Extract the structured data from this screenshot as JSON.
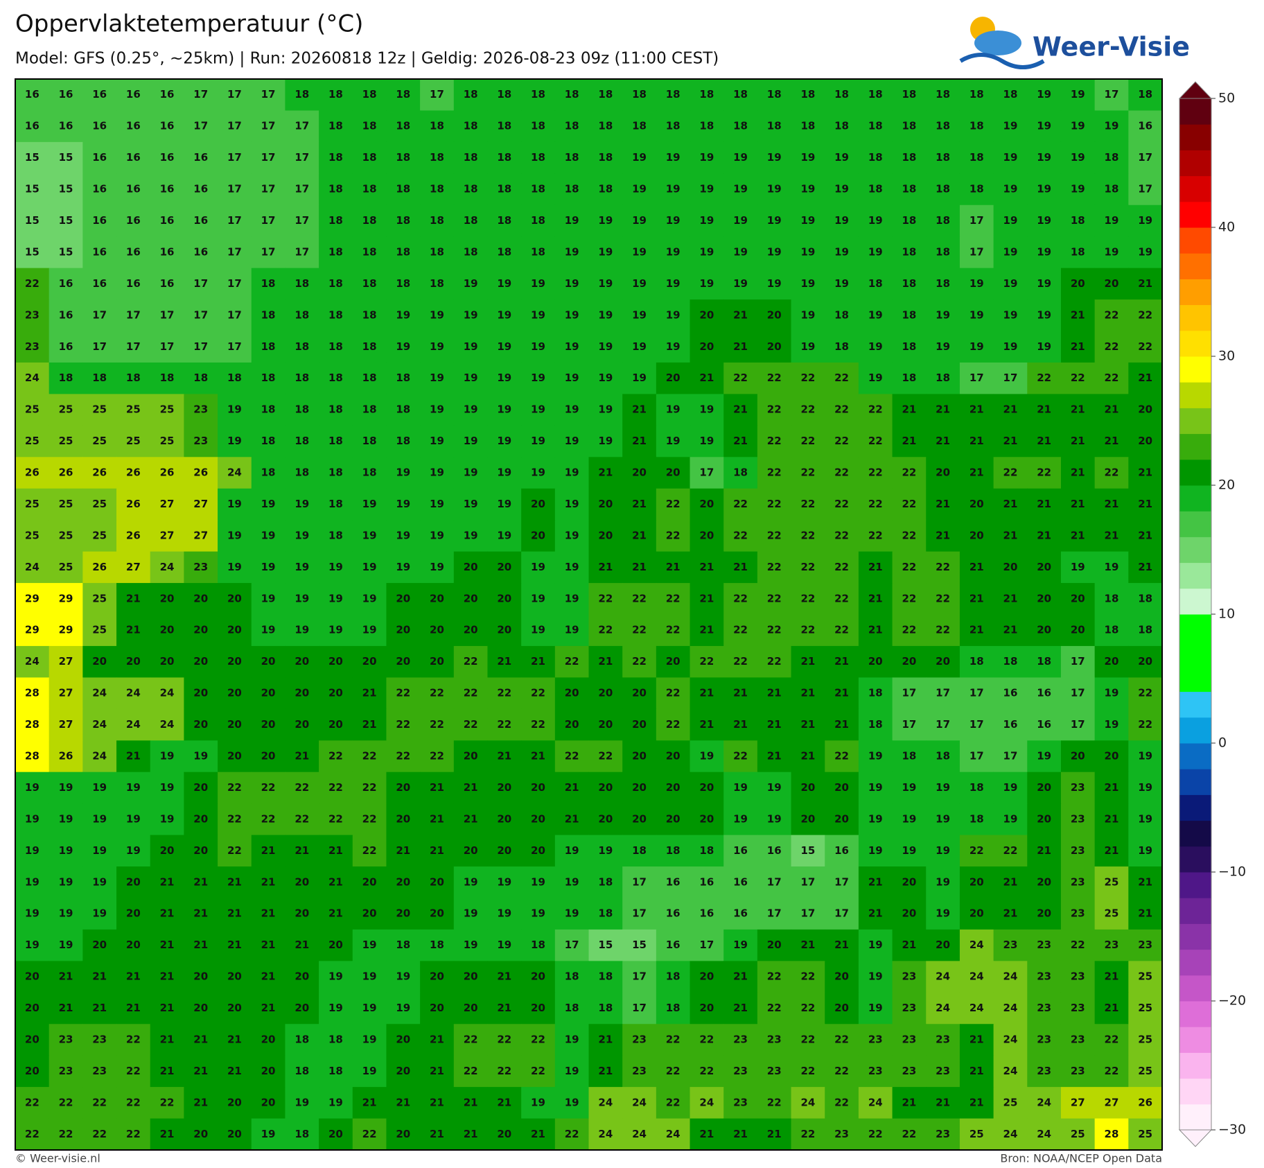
{
  "header": {
    "title": "Oppervlaktetemperatuur (°C)",
    "subtitle": "Model: GFS (0.25°, ~25km)  |  Run: 20260818 12z  |  Geldig: 2026-08-23 09z (11:00 CEST)"
  },
  "logo": "Weer-Visie",
  "footer": {
    "credit": "© Weer-visie.nl",
    "source": "Bron: NOAA/NCEP Open Data"
  },
  "map": {
    "rows": [
      [
        16,
        16,
        16,
        16,
        16,
        17,
        17,
        17,
        18,
        18,
        18,
        18,
        17,
        18,
        18,
        18,
        18,
        18,
        18,
        18,
        18,
        18,
        18,
        18,
        18,
        18,
        18,
        18,
        18,
        18,
        19,
        19,
        17,
        18
      ],
      [
        16,
        16,
        16,
        16,
        16,
        17,
        17,
        17,
        17,
        18,
        18,
        18,
        18,
        18,
        18,
        18,
        18,
        18,
        18,
        18,
        18,
        18,
        18,
        18,
        18,
        18,
        18,
        18,
        18,
        19,
        19,
        19,
        19,
        16
      ],
      [
        15,
        15,
        16,
        16,
        16,
        16,
        17,
        17,
        17,
        18,
        18,
        18,
        18,
        18,
        18,
        18,
        18,
        18,
        19,
        19,
        19,
        19,
        19,
        19,
        19,
        18,
        18,
        18,
        18,
        19,
        19,
        19,
        18,
        17
      ],
      [
        15,
        15,
        16,
        16,
        16,
        16,
        17,
        17,
        17,
        18,
        18,
        18,
        18,
        18,
        18,
        18,
        18,
        18,
        19,
        19,
        19,
        19,
        19,
        19,
        19,
        18,
        18,
        18,
        18,
        19,
        19,
        19,
        18,
        17
      ],
      [
        15,
        15,
        16,
        16,
        16,
        16,
        17,
        17,
        17,
        18,
        18,
        18,
        18,
        18,
        18,
        18,
        19,
        19,
        19,
        19,
        19,
        19,
        19,
        19,
        19,
        19,
        18,
        18,
        17,
        19,
        19,
        18,
        19,
        19
      ],
      [
        15,
        15,
        16,
        16,
        16,
        16,
        17,
        17,
        17,
        18,
        18,
        18,
        18,
        18,
        18,
        18,
        19,
        19,
        19,
        19,
        19,
        19,
        19,
        19,
        19,
        19,
        18,
        18,
        17,
        19,
        19,
        18,
        19,
        19
      ],
      [
        22,
        16,
        16,
        16,
        16,
        17,
        17,
        18,
        18,
        18,
        18,
        18,
        18,
        19,
        19,
        19,
        19,
        19,
        19,
        19,
        19,
        19,
        19,
        19,
        19,
        18,
        18,
        18,
        19,
        19,
        19,
        20,
        20,
        21
      ],
      [
        23,
        16,
        17,
        17,
        17,
        17,
        17,
        18,
        18,
        18,
        18,
        19,
        19,
        19,
        19,
        19,
        19,
        19,
        19,
        19,
        20,
        21,
        20,
        19,
        18,
        19,
        18,
        19,
        19,
        19,
        19,
        21,
        22,
        22
      ],
      [
        23,
        16,
        17,
        17,
        17,
        17,
        17,
        18,
        18,
        18,
        18,
        19,
        19,
        19,
        19,
        19,
        19,
        19,
        19,
        19,
        20,
        21,
        20,
        19,
        18,
        19,
        18,
        19,
        19,
        19,
        19,
        21,
        22,
        22
      ],
      [
        24,
        18,
        18,
        18,
        18,
        18,
        18,
        18,
        18,
        18,
        18,
        18,
        19,
        19,
        19,
        19,
        19,
        19,
        19,
        20,
        21,
        22,
        22,
        22,
        22,
        19,
        18,
        18,
        17,
        17,
        22,
        22,
        22,
        21
      ],
      [
        25,
        25,
        25,
        25,
        25,
        23,
        19,
        18,
        18,
        18,
        18,
        18,
        19,
        19,
        19,
        19,
        19,
        19,
        21,
        19,
        19,
        21,
        22,
        22,
        22,
        22,
        21,
        21,
        21,
        21,
        21,
        21,
        21,
        20
      ],
      [
        25,
        25,
        25,
        25,
        25,
        23,
        19,
        18,
        18,
        18,
        18,
        18,
        19,
        19,
        19,
        19,
        19,
        19,
        21,
        19,
        19,
        21,
        22,
        22,
        22,
        22,
        21,
        21,
        21,
        21,
        21,
        21,
        21,
        20
      ],
      [
        26,
        26,
        26,
        26,
        26,
        26,
        24,
        18,
        18,
        18,
        18,
        19,
        19,
        19,
        19,
        19,
        19,
        21,
        20,
        20,
        17,
        18,
        22,
        22,
        22,
        22,
        22,
        20,
        21,
        22,
        22,
        21,
        22,
        21
      ],
      [
        25,
        25,
        25,
        26,
        27,
        27,
        19,
        19,
        19,
        18,
        19,
        19,
        19,
        19,
        19,
        20,
        19,
        20,
        21,
        22,
        20,
        22,
        22,
        22,
        22,
        22,
        22,
        21,
        20,
        21,
        21,
        21,
        21,
        21
      ],
      [
        25,
        25,
        25,
        26,
        27,
        27,
        19,
        19,
        19,
        18,
        19,
        19,
        19,
        19,
        19,
        20,
        19,
        20,
        21,
        22,
        20,
        22,
        22,
        22,
        22,
        22,
        22,
        21,
        20,
        21,
        21,
        21,
        21,
        21
      ],
      [
        24,
        25,
        26,
        27,
        24,
        23,
        19,
        19,
        19,
        19,
        19,
        19,
        19,
        20,
        20,
        19,
        19,
        21,
        21,
        21,
        21,
        21,
        22,
        22,
        22,
        21,
        22,
        22,
        21,
        20,
        20,
        19,
        19,
        21
      ],
      [
        29,
        29,
        25,
        21,
        20,
        20,
        20,
        19,
        19,
        19,
        19,
        20,
        20,
        20,
        20,
        19,
        19,
        22,
        22,
        22,
        21,
        22,
        22,
        22,
        22,
        21,
        22,
        22,
        21,
        21,
        20,
        20,
        18,
        18
      ],
      [
        29,
        29,
        25,
        21,
        20,
        20,
        20,
        19,
        19,
        19,
        19,
        20,
        20,
        20,
        20,
        19,
        19,
        22,
        22,
        22,
        21,
        22,
        22,
        22,
        22,
        21,
        22,
        22,
        21,
        21,
        20,
        20,
        18,
        18
      ],
      [
        24,
        27,
        20,
        20,
        20,
        20,
        20,
        20,
        20,
        20,
        20,
        20,
        20,
        22,
        21,
        21,
        22,
        21,
        22,
        20,
        22,
        22,
        22,
        21,
        21,
        20,
        20,
        20,
        18,
        18,
        18,
        17,
        20,
        20
      ],
      [
        28,
        27,
        24,
        24,
        24,
        20,
        20,
        20,
        20,
        20,
        21,
        22,
        22,
        22,
        22,
        22,
        20,
        20,
        20,
        22,
        21,
        21,
        21,
        21,
        21,
        18,
        17,
        17,
        17,
        16,
        16,
        17,
        19,
        22
      ],
      [
        28,
        27,
        24,
        24,
        24,
        20,
        20,
        20,
        20,
        20,
        21,
        22,
        22,
        22,
        22,
        22,
        20,
        20,
        20,
        22,
        21,
        21,
        21,
        21,
        21,
        18,
        17,
        17,
        17,
        16,
        16,
        17,
        19,
        22
      ],
      [
        28,
        26,
        24,
        21,
        19,
        19,
        20,
        20,
        21,
        22,
        22,
        22,
        22,
        20,
        21,
        21,
        22,
        22,
        20,
        20,
        19,
        22,
        21,
        21,
        22,
        19,
        18,
        18,
        17,
        17,
        19,
        20,
        20,
        19
      ],
      [
        19,
        19,
        19,
        19,
        19,
        20,
        22,
        22,
        22,
        22,
        22,
        20,
        21,
        21,
        20,
        20,
        21,
        20,
        20,
        20,
        20,
        19,
        19,
        20,
        20,
        19,
        19,
        19,
        18,
        19,
        20,
        23,
        21,
        19
      ],
      [
        19,
        19,
        19,
        19,
        19,
        20,
        22,
        22,
        22,
        22,
        22,
        20,
        21,
        21,
        20,
        20,
        21,
        20,
        20,
        20,
        20,
        19,
        19,
        20,
        20,
        19,
        19,
        19,
        18,
        19,
        20,
        23,
        21,
        19
      ],
      [
        19,
        19,
        19,
        19,
        20,
        20,
        22,
        21,
        21,
        21,
        22,
        21,
        21,
        20,
        20,
        20,
        19,
        19,
        18,
        18,
        18,
        16,
        16,
        15,
        16,
        19,
        19,
        19,
        22,
        22,
        21,
        23,
        21,
        19
      ],
      [
        19,
        19,
        19,
        20,
        21,
        21,
        21,
        21,
        20,
        21,
        20,
        20,
        20,
        19,
        19,
        19,
        19,
        18,
        17,
        16,
        16,
        16,
        17,
        17,
        17,
        21,
        20,
        19,
        20,
        21,
        20,
        23,
        25,
        21
      ],
      [
        19,
        19,
        19,
        20,
        21,
        21,
        21,
        21,
        20,
        21,
        20,
        20,
        20,
        19,
        19,
        19,
        19,
        18,
        17,
        16,
        16,
        16,
        17,
        17,
        17,
        21,
        20,
        19,
        20,
        21,
        20,
        23,
        25,
        21
      ],
      [
        19,
        19,
        20,
        20,
        21,
        21,
        21,
        21,
        21,
        20,
        19,
        18,
        18,
        19,
        19,
        18,
        17,
        15,
        15,
        16,
        17,
        19,
        20,
        21,
        21,
        19,
        21,
        20,
        24,
        23,
        23,
        22,
        23,
        23
      ],
      [
        20,
        21,
        21,
        21,
        21,
        20,
        20,
        21,
        20,
        19,
        19,
        19,
        20,
        20,
        21,
        20,
        18,
        18,
        17,
        18,
        20,
        21,
        22,
        22,
        20,
        19,
        23,
        24,
        24,
        24,
        23,
        23,
        21,
        25
      ],
      [
        20,
        21,
        21,
        21,
        21,
        20,
        20,
        21,
        20,
        19,
        19,
        19,
        20,
        20,
        21,
        20,
        18,
        18,
        17,
        18,
        20,
        21,
        22,
        22,
        20,
        19,
        23,
        24,
        24,
        24,
        23,
        23,
        21,
        25
      ],
      [
        20,
        23,
        23,
        22,
        21,
        21,
        21,
        20,
        18,
        18,
        19,
        20,
        21,
        22,
        22,
        22,
        19,
        21,
        23,
        22,
        22,
        23,
        23,
        22,
        22,
        23,
        23,
        23,
        21,
        24,
        23,
        23,
        22,
        25
      ],
      [
        20,
        23,
        23,
        22,
        21,
        21,
        21,
        20,
        18,
        18,
        19,
        20,
        21,
        22,
        22,
        22,
        19,
        21,
        23,
        22,
        22,
        23,
        23,
        22,
        22,
        23,
        23,
        23,
        21,
        24,
        23,
        23,
        22,
        25
      ],
      [
        22,
        22,
        22,
        22,
        22,
        21,
        20,
        20,
        19,
        19,
        21,
        21,
        21,
        21,
        21,
        19,
        19,
        24,
        24,
        22,
        24,
        23,
        22,
        24,
        22,
        24,
        21,
        21,
        21,
        25,
        24,
        27,
        27,
        26
      ],
      [
        22,
        22,
        22,
        22,
        21,
        20,
        20,
        19,
        18,
        20,
        22,
        20,
        21,
        21,
        20,
        21,
        22,
        24,
        24,
        24,
        21,
        21,
        21,
        22,
        23,
        22,
        22,
        23,
        25,
        24,
        24,
        25,
        28,
        25
      ]
    ]
  },
  "colorbar": {
    "lim": [
      -30,
      50
    ],
    "ticks": [
      50,
      40,
      30,
      20,
      10,
      0,
      {
        "value": -10,
        "label": "−10"
      },
      {
        "value": -20,
        "label": "−20"
      },
      {
        "value": -30,
        "label": "−30"
      }
    ],
    "colors": [
      "#fff0fb",
      "#ffd6f5",
      "#fab4ee",
      "#ee8ce2",
      "#de6ed8",
      "#c556c8",
      "#a743b8",
      "#8a33a8",
      "#6d2497",
      "#4f1788",
      "#2a0e5e",
      "#140a48",
      "#0a1a78",
      "#0a44a8",
      "#0a6cc4",
      "#0aa0e0",
      "#2ec4f5",
      "#0f0",
      "#0f0",
      "#0f0",
      "#ccf7d0",
      "#9ae89a",
      "#6ed46a",
      "#44c444",
      "#10b420",
      "#009600",
      "#38ac0c",
      "#78c418",
      "#b8d800",
      "#ffff00",
      "#ffe000",
      "#ffc400",
      "#ff9e00",
      "#ff7000",
      "#ff4a00",
      "#ff0000",
      "#d80000",
      "#b00000",
      "#880000",
      "#600010"
    ]
  }
}
